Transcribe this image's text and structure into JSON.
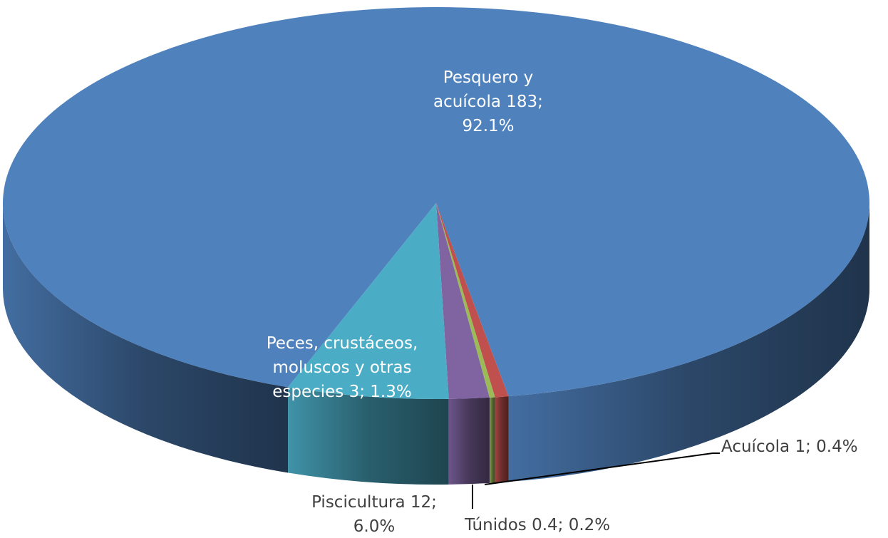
{
  "chart_data": {
    "type": "pie",
    "categories": [
      "Pesquero y acuícola",
      "Acuícola",
      "Túnidos",
      "Peces, crustáceos, moluscos y otras especies",
      "Piscicultura"
    ],
    "values": [
      183,
      1,
      0.4,
      3,
      12
    ],
    "value_labels": [
      "183; 92.1%",
      "1; 0.4%",
      "0.4; 0.2%",
      "3; 1.3%",
      "12; 6.0%"
    ],
    "colors": [
      "#4f81bd",
      "#c0504d",
      "#9bbb59",
      "#8064a2",
      "#4bacc6"
    ]
  }
}
